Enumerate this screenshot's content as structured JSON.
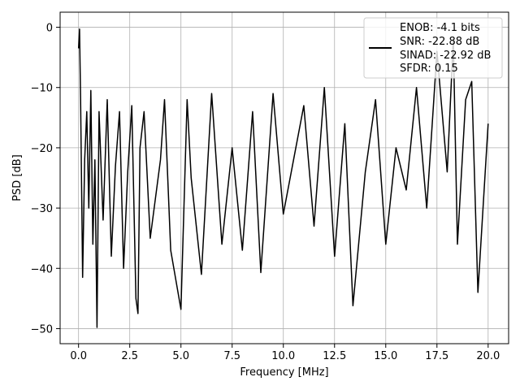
{
  "chart_data": {
    "type": "line",
    "title": "",
    "xlabel": "Frequency [MHz]",
    "ylabel": "PSD [dB]",
    "xlim": [
      -0.9,
      21.0
    ],
    "ylim": [
      -52.5,
      2.5
    ],
    "x_ticks": [
      0.0,
      2.5,
      5.0,
      7.5,
      10.0,
      12.5,
      15.0,
      17.5,
      20.0
    ],
    "x_tick_labels": [
      "0.0",
      "2.5",
      "5.0",
      "7.5",
      "10.0",
      "12.5",
      "15.0",
      "17.5",
      "20.0"
    ],
    "y_ticks": [
      0,
      -10,
      -20,
      -30,
      -40,
      -50
    ],
    "y_tick_labels": [
      "0",
      "−10",
      "−20",
      "−30",
      "−40",
      "−50"
    ],
    "grid": true,
    "legend_position": "top-right",
    "legend_entries": [
      "ENOB: -4.1 bits",
      "SNR: -22.88 dB",
      "SINAD: -22.92 dB",
      "SFDR: 0.15"
    ],
    "series": [
      {
        "color": "#000000",
        "x": [
          0.0,
          0.05,
          0.1,
          0.2,
          0.3,
          0.4,
          0.5,
          0.6,
          0.7,
          0.8,
          0.9,
          1.0,
          1.2,
          1.4,
          1.6,
          1.8,
          2.0,
          2.2,
          2.4,
          2.6,
          2.8,
          2.9,
          3.0,
          3.2,
          3.5,
          4.0,
          4.2,
          4.5,
          5.0,
          5.3,
          5.5,
          6.0,
          6.5,
          7.0,
          7.5,
          8.0,
          8.5,
          8.9,
          9.5,
          10.0,
          10.5,
          11.0,
          11.5,
          12.0,
          12.5,
          13.0,
          13.4,
          14.0,
          14.5,
          15.0,
          15.5,
          16.0,
          16.5,
          17.0,
          17.5,
          18.0,
          18.3,
          18.5,
          18.9,
          19.2,
          19.5,
          20.0
        ],
        "y": [
          -3.5,
          -0.3,
          -12,
          -41.5,
          -22,
          -14,
          -30,
          -10.5,
          -36,
          -22,
          -49.8,
          -14,
          -32,
          -12,
          -38,
          -23,
          -14,
          -40,
          -24,
          -13,
          -45,
          -47.5,
          -20,
          -14,
          -35,
          -22,
          -12,
          -37,
          -46.8,
          -12,
          -25,
          -41,
          -11,
          -36,
          -20,
          -37,
          -14,
          -40.7,
          -11,
          -31,
          -22,
          -13,
          -33,
          -10,
          -38,
          -16,
          -46.2,
          -24,
          -12,
          -36,
          -20,
          -27,
          -10,
          -30,
          -4,
          -24,
          -2,
          -36,
          -12,
          -9,
          -44,
          -16
        ]
      }
    ]
  }
}
